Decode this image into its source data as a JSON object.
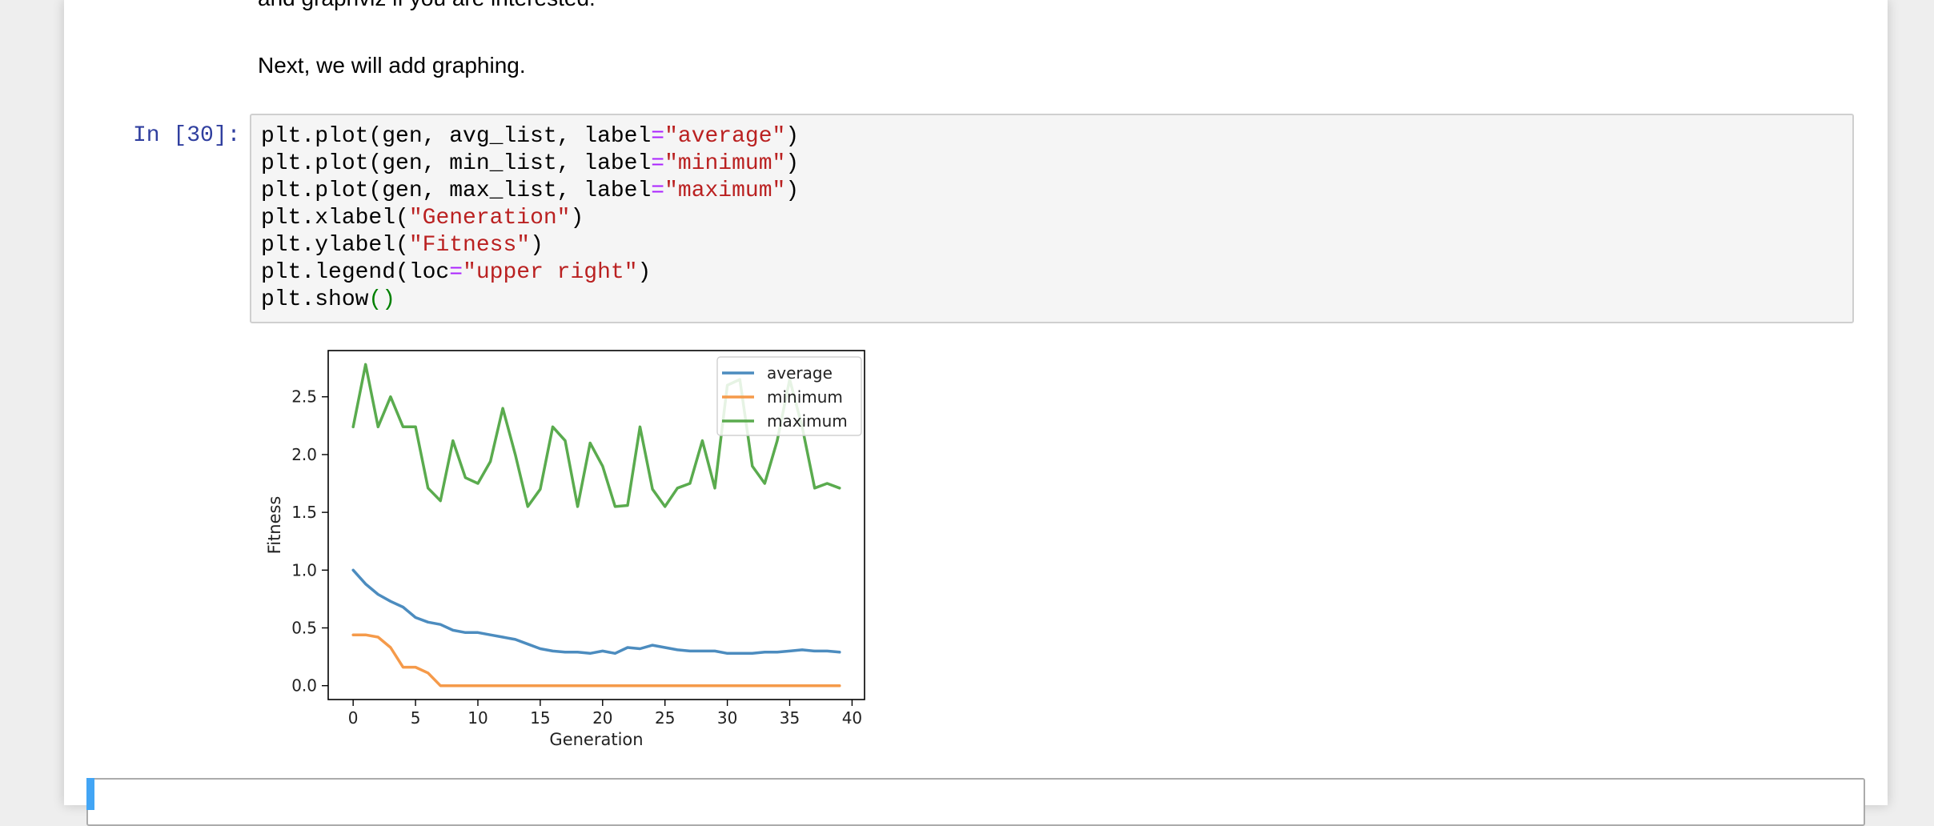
{
  "markdown": {
    "cut_text": "and graphviz if you are interested.",
    "paragraph": "Next, we will add graphing."
  },
  "cell": {
    "prompt": "In [30]:",
    "code": {
      "l1_a": "plt.plot(gen, avg_list, label",
      "l1_eq": "=",
      "l1_str": "\"average\"",
      "l1_end": ")",
      "l2_a": "plt.plot(gen, min_list, label",
      "l2_eq": "=",
      "l2_str": "\"minimum\"",
      "l2_end": ")",
      "l3_a": "plt.plot(gen, max_list, label",
      "l3_eq": "=",
      "l3_str": "\"maximum\"",
      "l3_end": ")",
      "l4_a": "plt.xlabel(",
      "l4_str": "\"Generation\"",
      "l4_end": ")",
      "l5_a": "plt.ylabel(",
      "l5_str": "\"Fitness\"",
      "l5_end": ")",
      "l6_a": "plt.legend(loc",
      "l6_eq": "=",
      "l6_str": "\"upper right\"",
      "l6_end": ")",
      "l7_a": "plt.show",
      "l7_paren": "()"
    }
  },
  "colors": {
    "average": "#4c8cbf",
    "minimum": "#f59a4a",
    "maximum": "#5aab4e"
  },
  "chart_data": {
    "type": "line",
    "xlabel": "Generation",
    "ylabel": "Fitness",
    "title": "",
    "xlim": [
      -2,
      41
    ],
    "ylim": [
      -0.12,
      2.9
    ],
    "xticks": [
      0,
      5,
      10,
      15,
      20,
      25,
      30,
      35,
      40
    ],
    "yticks": [
      0.0,
      0.5,
      1.0,
      1.5,
      2.0,
      2.5
    ],
    "ytick_labels": [
      "0.0",
      "0.5",
      "1.0",
      "1.5",
      "2.0",
      "2.5"
    ],
    "legend_position": "upper right",
    "x": [
      0,
      1,
      2,
      3,
      4,
      5,
      6,
      7,
      8,
      9,
      10,
      11,
      12,
      13,
      14,
      15,
      16,
      17,
      18,
      19,
      20,
      21,
      22,
      23,
      24,
      25,
      26,
      27,
      28,
      29,
      30,
      31,
      32,
      33,
      34,
      35,
      36,
      37,
      38,
      39
    ],
    "series": [
      {
        "name": "average",
        "values": [
          1.0,
          0.88,
          0.79,
          0.73,
          0.68,
          0.59,
          0.55,
          0.53,
          0.48,
          0.46,
          0.46,
          0.44,
          0.42,
          0.4,
          0.36,
          0.32,
          0.3,
          0.29,
          0.29,
          0.28,
          0.3,
          0.28,
          0.33,
          0.32,
          0.35,
          0.33,
          0.31,
          0.3,
          0.3,
          0.3,
          0.28,
          0.28,
          0.28,
          0.29,
          0.29,
          0.3,
          0.31,
          0.3,
          0.3,
          0.29
        ]
      },
      {
        "name": "minimum",
        "values": [
          0.44,
          0.44,
          0.42,
          0.33,
          0.16,
          0.16,
          0.11,
          0.0,
          0.0,
          0.0,
          0.0,
          0.0,
          0.0,
          0.0,
          0.0,
          0.0,
          0.0,
          0.0,
          0.0,
          0.0,
          0.0,
          0.0,
          0.0,
          0.0,
          0.0,
          0.0,
          0.0,
          0.0,
          0.0,
          0.0,
          0.0,
          0.0,
          0.0,
          0.0,
          0.0,
          0.0,
          0.0,
          0.0,
          0.0,
          0.0
        ]
      },
      {
        "name": "maximum",
        "values": [
          2.24,
          2.78,
          2.24,
          2.5,
          2.24,
          2.24,
          1.71,
          1.6,
          2.12,
          1.8,
          1.75,
          1.94,
          2.4,
          2.0,
          1.55,
          1.7,
          2.24,
          2.12,
          1.55,
          2.1,
          1.9,
          1.55,
          1.56,
          2.24,
          1.7,
          1.55,
          1.71,
          1.75,
          2.12,
          1.71,
          2.6,
          2.65,
          1.9,
          1.75,
          2.12,
          2.65,
          2.24,
          1.71,
          1.75,
          1.71
        ]
      }
    ]
  }
}
